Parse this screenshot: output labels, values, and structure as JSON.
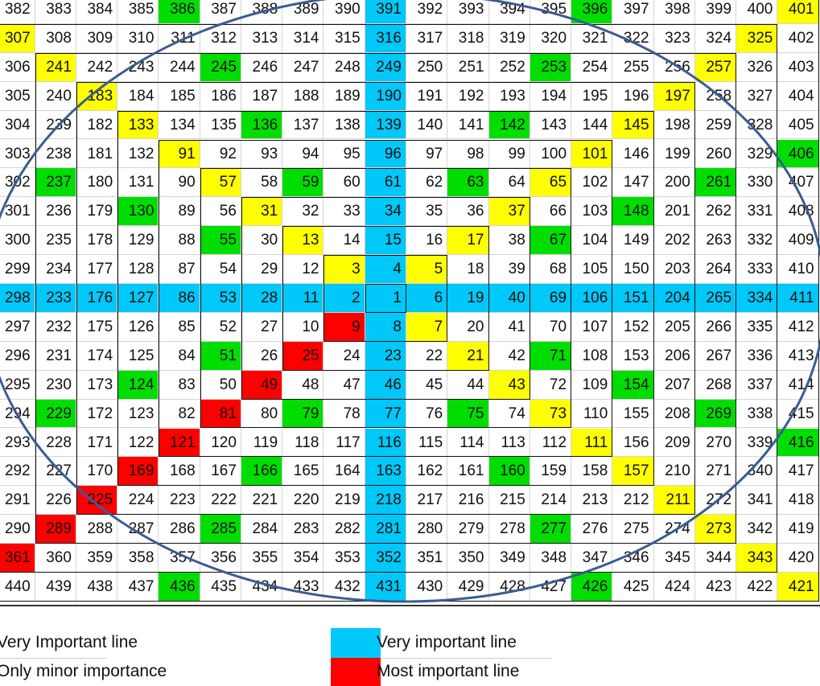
{
  "grid": {
    "rows": [
      [
        382,
        383,
        384,
        385,
        386,
        387,
        388,
        389,
        390,
        391,
        392,
        393,
        394,
        395,
        396,
        397,
        398,
        399,
        400,
        401
      ],
      [
        307,
        308,
        309,
        310,
        311,
        312,
        313,
        314,
        315,
        316,
        317,
        318,
        319,
        320,
        321,
        322,
        323,
        324,
        325,
        402
      ],
      [
        306,
        241,
        242,
        243,
        244,
        245,
        246,
        247,
        248,
        249,
        250,
        251,
        252,
        253,
        254,
        255,
        256,
        257,
        326,
        403
      ],
      [
        305,
        240,
        183,
        184,
        185,
        186,
        187,
        188,
        189,
        190,
        191,
        192,
        193,
        194,
        195,
        196,
        197,
        258,
        327,
        404
      ],
      [
        304,
        239,
        182,
        133,
        134,
        135,
        136,
        137,
        138,
        139,
        140,
        141,
        142,
        143,
        144,
        145,
        198,
        259,
        328,
        405
      ],
      [
        303,
        238,
        181,
        132,
        91,
        92,
        93,
        94,
        95,
        96,
        97,
        98,
        99,
        100,
        101,
        146,
        199,
        260,
        329,
        406
      ],
      [
        302,
        237,
        180,
        131,
        90,
        57,
        58,
        59,
        60,
        61,
        62,
        63,
        64,
        65,
        102,
        147,
        200,
        261,
        330,
        407
      ],
      [
        301,
        236,
        179,
        130,
        89,
        56,
        31,
        32,
        33,
        34,
        35,
        36,
        37,
        66,
        103,
        148,
        201,
        262,
        331,
        408
      ],
      [
        300,
        235,
        178,
        129,
        88,
        55,
        30,
        13,
        14,
        15,
        16,
        17,
        38,
        67,
        104,
        149,
        202,
        263,
        332,
        409
      ],
      [
        299,
        234,
        177,
        128,
        87,
        54,
        29,
        12,
        3,
        4,
        5,
        18,
        39,
        68,
        105,
        150,
        203,
        264,
        333,
        410
      ],
      [
        298,
        233,
        176,
        127,
        86,
        53,
        28,
        11,
        2,
        1,
        6,
        19,
        40,
        69,
        106,
        151,
        204,
        265,
        334,
        411
      ],
      [
        297,
        232,
        175,
        126,
        85,
        52,
        27,
        10,
        9,
        8,
        7,
        20,
        41,
        70,
        107,
        152,
        205,
        266,
        335,
        412
      ],
      [
        296,
        231,
        174,
        125,
        84,
        51,
        26,
        25,
        24,
        23,
        22,
        21,
        42,
        71,
        108,
        153,
        206,
        267,
        336,
        413
      ],
      [
        295,
        230,
        173,
        124,
        83,
        50,
        49,
        48,
        47,
        46,
        45,
        44,
        43,
        72,
        109,
        154,
        207,
        268,
        337,
        414
      ],
      [
        294,
        229,
        172,
        123,
        82,
        81,
        80,
        79,
        78,
        77,
        76,
        75,
        74,
        73,
        110,
        155,
        208,
        269,
        338,
        415
      ],
      [
        293,
        228,
        171,
        122,
        121,
        120,
        119,
        118,
        117,
        116,
        115,
        114,
        113,
        112,
        111,
        156,
        209,
        270,
        339,
        416
      ],
      [
        292,
        227,
        170,
        169,
        168,
        167,
        166,
        165,
        164,
        163,
        162,
        161,
        160,
        159,
        158,
        157,
        210,
        271,
        340,
        417
      ],
      [
        291,
        226,
        225,
        224,
        223,
        222,
        221,
        220,
        219,
        218,
        217,
        216,
        215,
        214,
        213,
        212,
        211,
        272,
        341,
        418
      ],
      [
        290,
        289,
        288,
        287,
        286,
        285,
        284,
        283,
        282,
        281,
        280,
        279,
        278,
        277,
        276,
        275,
        274,
        273,
        342,
        419
      ],
      [
        361,
        360,
        359,
        358,
        357,
        356,
        355,
        354,
        353,
        352,
        351,
        350,
        349,
        348,
        347,
        346,
        345,
        344,
        343,
        420
      ],
      [
        440,
        439,
        438,
        437,
        436,
        435,
        434,
        433,
        432,
        431,
        430,
        429,
        428,
        427,
        426,
        425,
        424,
        423,
        422,
        421
      ]
    ],
    "center_value": 1,
    "highlights": {
      "blue": [
        391,
        316,
        249,
        190,
        139,
        96,
        61,
        34,
        15,
        4,
        1,
        8,
        23,
        46,
        77,
        116,
        163,
        218,
        281,
        352,
        431,
        298,
        233,
        176,
        127,
        86,
        53,
        28,
        11,
        2,
        6,
        19,
        40,
        69,
        106,
        151,
        204,
        265,
        334,
        411
      ],
      "red": [
        9,
        25,
        49,
        81,
        121,
        169,
        225,
        289,
        361
      ],
      "yellow": [
        401,
        307,
        325,
        241,
        257,
        183,
        197,
        133,
        145,
        91,
        101,
        57,
        65,
        31,
        37,
        13,
        17,
        3,
        5,
        7,
        21,
        43,
        73,
        111,
        157,
        211,
        273,
        343,
        421
      ],
      "green": [
        386,
        396,
        245,
        253,
        136,
        142,
        406,
        237,
        59,
        63,
        261,
        130,
        148,
        55,
        67,
        51,
        71,
        124,
        154,
        229,
        79,
        75,
        269,
        416,
        166,
        160,
        285,
        277,
        436,
        426
      ]
    }
  },
  "colors": {
    "blue": "#00c8f8",
    "red": "#ff0000",
    "yellow": "#ffff00",
    "green": "#00dd00",
    "ellipse": "#3a5c92"
  },
  "legend": {
    "left": [
      "Very Important line",
      "Only minor importance"
    ],
    "right": [
      {
        "label": "Very important line",
        "color": "blue"
      },
      {
        "label": "Most important line",
        "color": "red"
      }
    ]
  }
}
